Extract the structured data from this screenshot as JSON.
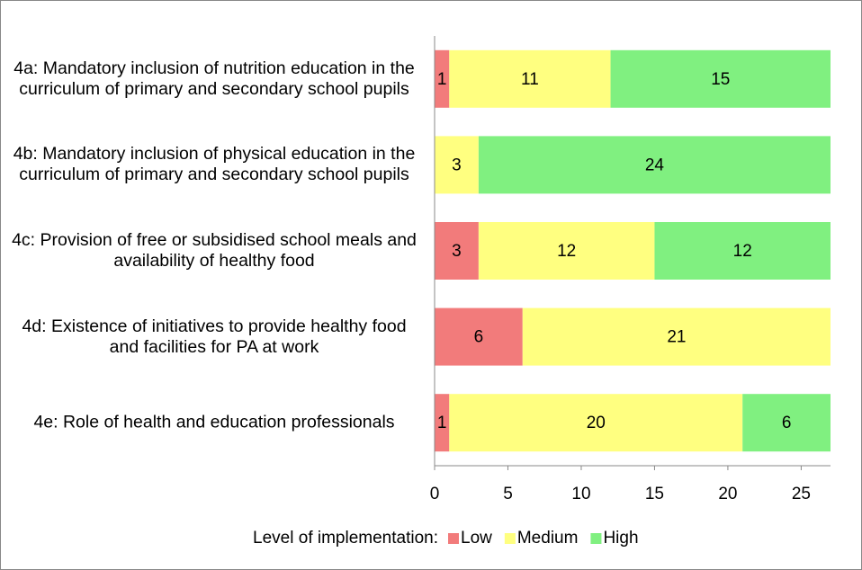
{
  "chart_data": {
    "type": "stacked-bar-horizontal",
    "categories": [
      "4a: Mandatory inclusion of nutrition education in the curriculum of primary and secondary school pupils",
      "4b: Mandatory inclusion of physical education in the curriculum of primary and secondary school pupils",
      "4c: Provision of free or subsidised school meals and availability of healthy food",
      "4d: Existence of initiatives to provide healthy food and facilities for PA at work",
      "4e: Role of health and education professionals"
    ],
    "series": [
      {
        "name": "Low",
        "color": "#f27b7b",
        "values": [
          1,
          0,
          3,
          6,
          1
        ]
      },
      {
        "name": "Medium",
        "color": "#ffff80",
        "values": [
          11,
          3,
          12,
          21,
          20
        ]
      },
      {
        "name": "High",
        "color": "#80f080",
        "values": [
          15,
          24,
          12,
          0,
          6
        ]
      }
    ],
    "legend_title": "Level of implementation:",
    "xlim": [
      0,
      27
    ],
    "xticks": [
      0,
      5,
      10,
      15,
      20,
      25
    ],
    "legend": "bottom"
  }
}
